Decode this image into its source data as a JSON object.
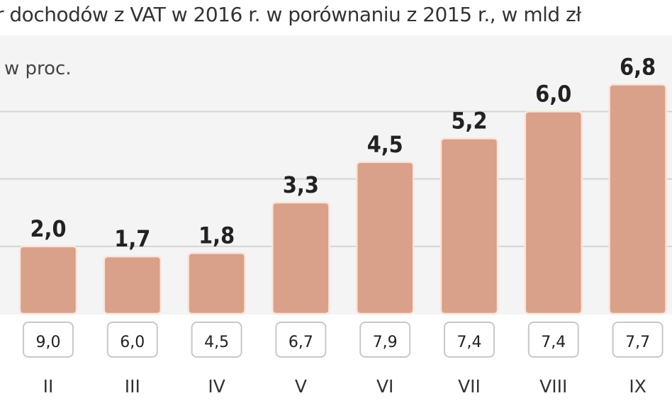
{
  "chart_data": {
    "type": "bar",
    "title": "r dochodów z VAT w 2016 r. w porównaniu z 2015 r., w mld zł",
    "subtitle": "w proc.",
    "categories": [
      "II",
      "III",
      "IV",
      "V",
      "VI",
      "VII",
      "VIII",
      "IX"
    ],
    "values": [
      2.0,
      1.7,
      1.8,
      3.3,
      4.5,
      5.2,
      6.0,
      6.8
    ],
    "value_labels": [
      "2,0",
      "1,7",
      "1,8",
      "3,3",
      "4,5",
      "5,2",
      "6,0",
      "6,8"
    ],
    "percent_labels": [
      "9,0",
      "6,0",
      "4,5",
      "6,7",
      "7,9",
      "7,4",
      "7,4",
      "7,7"
    ],
    "ylim": [
      0,
      8.3
    ],
    "gridlines": [
      2,
      4,
      6
    ],
    "bar_color": "#d9a08a"
  }
}
